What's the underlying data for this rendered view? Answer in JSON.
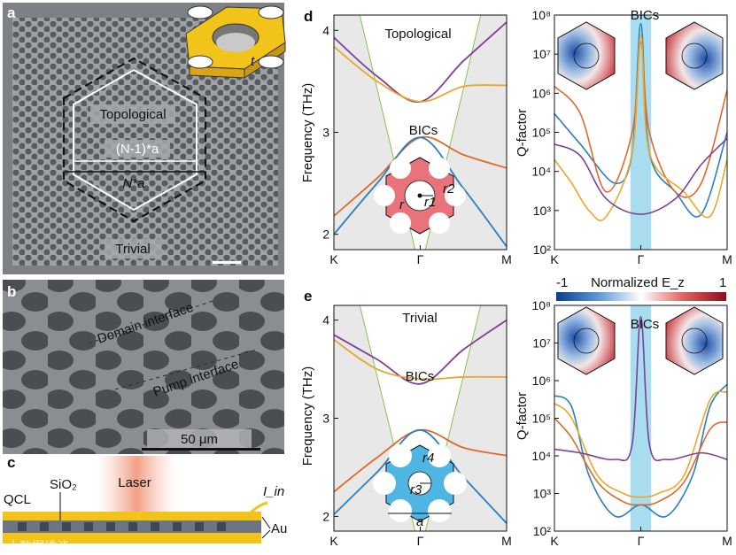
{
  "panel_letters": {
    "a": "a",
    "b": "b",
    "c": "c",
    "d": "d",
    "e": "e"
  },
  "panel_a": {
    "topological": "Topological",
    "trivial": "Trivial",
    "dim_inner": "(N-1)*a",
    "dim_outer": "N*a",
    "inset_t": "t"
  },
  "panel_b": {
    "domain_interface": "Domain interface",
    "pump_interface": "Pump interface",
    "scale_bar": "50 μm"
  },
  "panel_c": {
    "laser": "Laser",
    "qcl": "QCL",
    "sio2": "SiO₂",
    "current": "I_in",
    "au": "Au"
  },
  "watermark": "大数据维谈",
  "colorbar": {
    "min": "-1",
    "max": "1",
    "title": "Normalized E_z"
  },
  "colors": {
    "purple": "#7e3f98",
    "orange": "#e0692a",
    "yellow": "#e9a82b",
    "blue": "#2a7fc0",
    "cyan": "#a8dcef",
    "green": "#8bc34a",
    "pink": "#e9737b",
    "lightblue": "#4fb6e3"
  },
  "chart_data": [
    {
      "id": "d-bands",
      "type": "line",
      "title": "Topological",
      "xlabel": "",
      "ylabel": "Frequency (THz)",
      "ylim": [
        1.85,
        4.15
      ],
      "xticks": [
        "K",
        "Γ",
        "M"
      ],
      "yticks": [
        2,
        3,
        4
      ],
      "annotations": [
        "BICs"
      ],
      "inset_labels": [
        "r",
        "r1",
        "r2"
      ],
      "series": [
        {
          "name": "band-purple",
          "color": "#7e3f98",
          "x": [
            0,
            0.25,
            0.5,
            0.75,
            1
          ],
          "y": [
            3.93,
            3.55,
            3.3,
            3.7,
            4.08
          ]
        },
        {
          "name": "band-yellow",
          "color": "#e9a82b",
          "x": [
            0,
            0.25,
            0.5,
            0.75,
            1
          ],
          "y": [
            3.84,
            3.5,
            3.3,
            3.45,
            3.46
          ]
        },
        {
          "name": "band-orange",
          "color": "#e0692a",
          "x": [
            0,
            0.25,
            0.5,
            0.75,
            1
          ],
          "y": [
            2.18,
            2.55,
            2.95,
            2.78,
            2.65
          ]
        },
        {
          "name": "band-blue",
          "color": "#2a7fc0",
          "x": [
            0,
            0.25,
            0.5,
            0.75,
            1
          ],
          "y": [
            2.0,
            2.5,
            2.95,
            2.45,
            1.88
          ]
        }
      ]
    },
    {
      "id": "d-q",
      "type": "line",
      "title": "BICs",
      "xlabel": "",
      "ylabel": "Q-factor",
      "yscale": "log",
      "ylim_exp": [
        2,
        8
      ],
      "xticks": [
        "K",
        "Γ",
        "M"
      ],
      "yticks": [
        "10²",
        "10³",
        "10⁴",
        "10⁵",
        "10⁶",
        "10⁷",
        "10⁸"
      ],
      "series": [
        {
          "name": "q-blue",
          "color": "#2a7fc0",
          "x": [
            0,
            0.15,
            0.35,
            0.45,
            0.5,
            0.55,
            0.7,
            0.85,
            1
          ],
          "y": [
            300000,
            50000,
            5000,
            30000,
            60000000,
            30000,
            3000,
            800,
            100000
          ]
        },
        {
          "name": "q-orange",
          "color": "#e0692a",
          "x": [
            0,
            0.15,
            0.3,
            0.45,
            0.5,
            0.55,
            0.7,
            0.85,
            1
          ],
          "y": [
            1500000,
            300000,
            3000,
            100000,
            20000000,
            100000,
            3000,
            5000,
            1200000
          ]
        },
        {
          "name": "q-yellow",
          "color": "#e9a82b",
          "x": [
            0,
            0.1,
            0.2,
            0.3,
            0.45,
            0.5,
            0.55,
            0.75,
            0.9,
            1
          ],
          "y": [
            20000,
            5000,
            1000,
            700,
            30000,
            30000000,
            30000,
            3000,
            700,
            20000
          ]
        },
        {
          "name": "q-purple",
          "color": "#7e3f98",
          "x": [
            0,
            0.15,
            0.3,
            0.5,
            0.7,
            0.85,
            1
          ],
          "y": [
            50000,
            25000,
            2000,
            800,
            2000,
            15000,
            70000
          ]
        }
      ]
    },
    {
      "id": "e-bands",
      "type": "line",
      "title": "Trivial",
      "xlabel": "",
      "ylabel": "Frequency (THz)",
      "ylim": [
        1.85,
        4.15
      ],
      "xticks": [
        "K",
        "Γ",
        "M"
      ],
      "yticks": [
        2,
        3,
        4
      ],
      "annotations": [
        "BICs"
      ],
      "inset_labels": [
        "r4",
        "r3",
        "a"
      ],
      "series": [
        {
          "name": "band-purple",
          "color": "#7e3f98",
          "x": [
            0,
            0.25,
            0.5,
            0.75,
            1
          ],
          "y": [
            3.85,
            3.6,
            3.35,
            3.7,
            4.0
          ]
        },
        {
          "name": "band-yellow",
          "color": "#e9a82b",
          "x": [
            0,
            0.25,
            0.5,
            0.75,
            1
          ],
          "y": [
            3.8,
            3.5,
            3.4,
            3.42,
            3.42
          ]
        },
        {
          "name": "band-orange",
          "color": "#e0692a",
          "x": [
            0,
            0.25,
            0.5,
            0.75,
            1
          ],
          "y": [
            2.25,
            2.6,
            2.88,
            2.7,
            2.62
          ]
        },
        {
          "name": "band-blue",
          "color": "#2a7fc0",
          "x": [
            0,
            0.25,
            0.5,
            0.75,
            1
          ],
          "y": [
            2.02,
            2.45,
            2.88,
            2.4,
            1.93
          ]
        }
      ]
    },
    {
      "id": "e-q",
      "type": "line",
      "title": "BICs",
      "xlabel": "",
      "ylabel": "Q-factor",
      "yscale": "log",
      "ylim_exp": [
        2,
        8
      ],
      "xticks": [
        "K",
        "Γ",
        "M"
      ],
      "yticks": [
        "10²",
        "10³",
        "10⁴",
        "10⁵",
        "10⁶",
        "10⁷",
        "10⁸"
      ],
      "series": [
        {
          "name": "q-blue",
          "color": "#2a7fc0",
          "x": [
            0,
            0.1,
            0.2,
            0.35,
            0.5,
            0.65,
            0.8,
            0.9,
            1
          ],
          "y": [
            400000,
            200000,
            3000,
            250,
            500,
            250,
            3000,
            200000,
            800000
          ]
        },
        {
          "name": "q-orange",
          "color": "#e0692a",
          "x": [
            0,
            0.1,
            0.25,
            0.4,
            0.5,
            0.6,
            0.75,
            0.9,
            1
          ],
          "y": [
            100000,
            30000,
            2000,
            600,
            500,
            600,
            2000,
            50000,
            80000
          ]
        },
        {
          "name": "q-yellow",
          "color": "#e9a82b",
          "x": [
            0,
            0.1,
            0.25,
            0.4,
            0.5,
            0.6,
            0.75,
            0.9,
            1
          ],
          "y": [
            250000,
            100000,
            3000,
            1000,
            800,
            1000,
            3000,
            300000,
            500000
          ]
        },
        {
          "name": "q-purple",
          "color": "#7e3f98",
          "x": [
            0,
            0.15,
            0.35,
            0.45,
            0.5,
            0.55,
            0.65,
            0.85,
            1
          ],
          "y": [
            15000,
            12000,
            8000,
            20000,
            50000000,
            20000,
            8000,
            12000,
            8000
          ]
        }
      ]
    }
  ]
}
